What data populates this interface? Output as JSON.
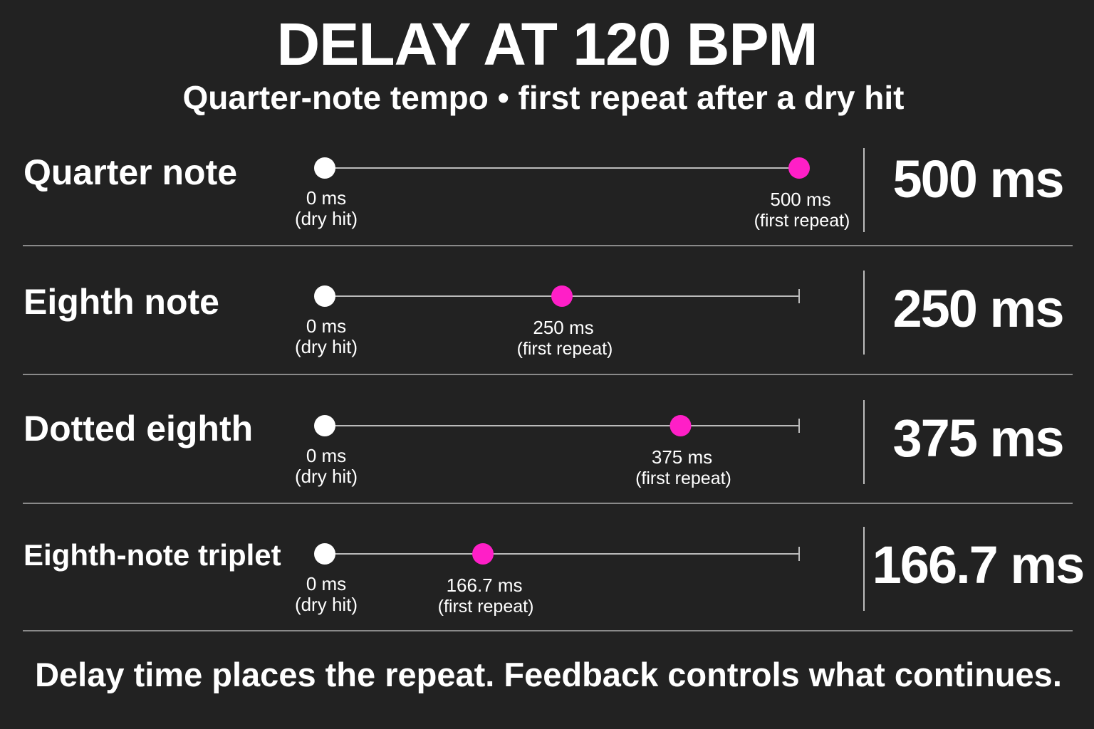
{
  "title": "DELAY AT 120 BPM",
  "subtitle": "Quarter-note tempo • first repeat after a dry hit",
  "footer": "Delay time places the repeat. Feedback controls what continues.",
  "colors": {
    "background": "#222222",
    "dry_hit": "#ffffff",
    "first_repeat": "#ff1fc7",
    "timeline": "#bbbbbb"
  },
  "chart_data": {
    "type": "scatter",
    "x_range_ms": [
      0,
      500
    ],
    "dry_label": "0 ms",
    "dry_caption": "(dry hit)",
    "repeat_caption": "(first repeat)",
    "rows": [
      {
        "label": "Quarter note",
        "delay_ms": 500,
        "point_label": "500 ms",
        "value_text": "500 ms"
      },
      {
        "label": "Eighth note",
        "delay_ms": 250,
        "point_label": "250 ms",
        "value_text": "250 ms"
      },
      {
        "label": "Dotted eighth",
        "delay_ms": 375,
        "point_label": "375 ms",
        "value_text": "375 ms"
      },
      {
        "label": "Eighth-note triplet",
        "delay_ms": 166.7,
        "point_label": "166.7 ms",
        "value_text": "166.7 ms"
      }
    ]
  }
}
